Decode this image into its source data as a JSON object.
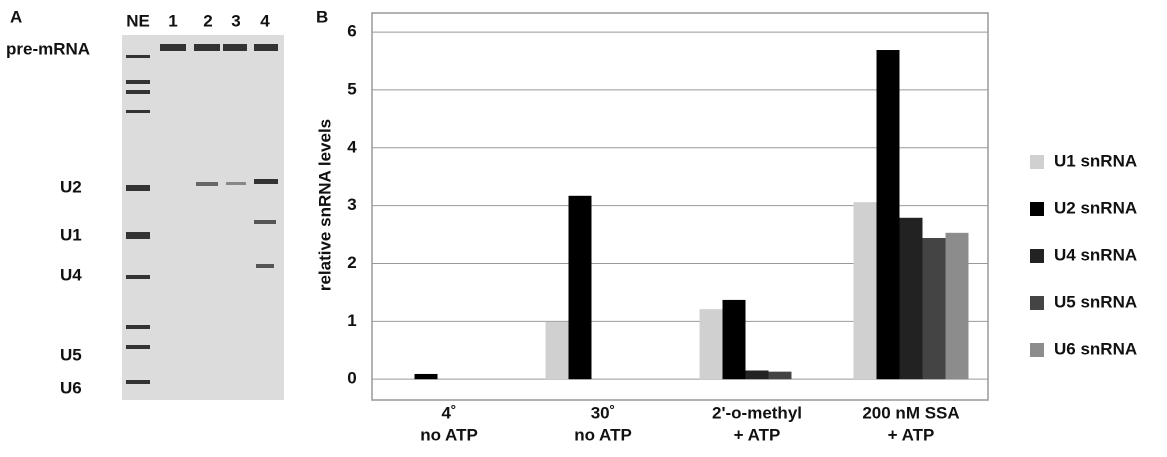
{
  "panel_a": {
    "label": "A",
    "lanes": [
      "NE",
      "1",
      "2",
      "3",
      "4"
    ],
    "markers": [
      "pre-mRNA",
      "U2",
      "U1",
      "U4",
      "U5",
      "U6"
    ]
  },
  "chart_data": {
    "type": "bar",
    "panel_label": "B",
    "y_label": "relative snRNA levels",
    "categories": [
      [
        "4˚",
        "no ATP"
      ],
      [
        "30˚",
        "no ATP"
      ],
      [
        "2'-o-methyl",
        "+  ATP"
      ],
      [
        "200 nM SSA",
        "+  ATP"
      ]
    ],
    "series": [
      {
        "name": "U1 snRNA",
        "color": "#d0d0d0",
        "values": [
          0,
          0.99,
          1.21,
          3.06
        ]
      },
      {
        "name": "U2 snRNA",
        "color": "#000000",
        "values": [
          0.09,
          3.17,
          1.37,
          5.69
        ]
      },
      {
        "name": "U4 snRNA",
        "color": "#222222",
        "values": [
          0,
          0,
          0.15,
          2.79
        ]
      },
      {
        "name": "U5 snRNA",
        "color": "#444444",
        "values": [
          0,
          0,
          0.13,
          2.44
        ]
      },
      {
        "name": "U6 snRNA",
        "color": "#8c8c8c",
        "values": [
          0,
          0,
          0,
          2.53
        ]
      }
    ],
    "ylim": [
      -0.36,
      6.33
    ],
    "yticks": [
      0,
      1,
      2,
      3,
      4,
      5,
      6
    ],
    "grid": true,
    "legend": "right"
  }
}
